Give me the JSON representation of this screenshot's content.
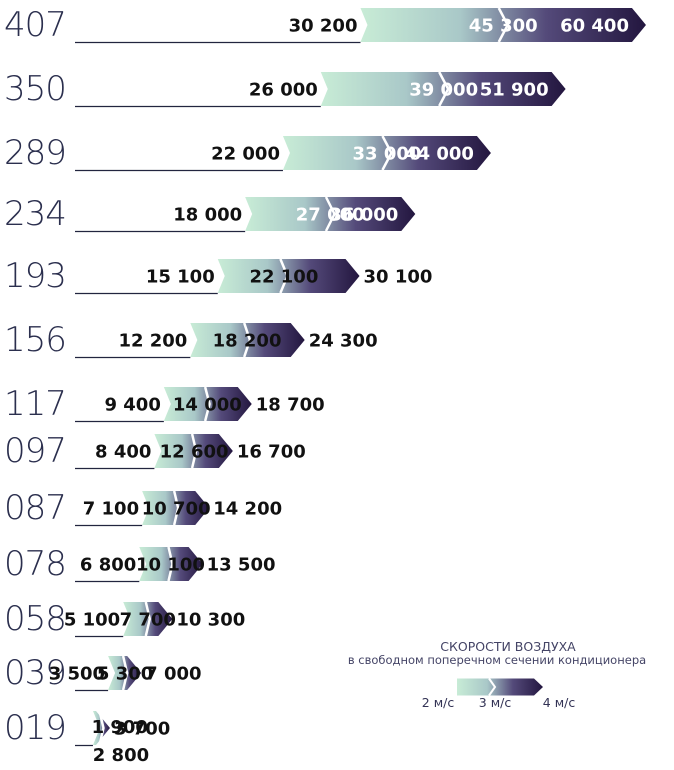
{
  "chart_data": {
    "type": "bar",
    "categories": [
      "407",
      "350",
      "289",
      "234",
      "193",
      "156",
      "117",
      "097",
      "087",
      "078",
      "058",
      "039",
      "019"
    ],
    "series": [
      {
        "name": "2 м/с",
        "values": [
          30200,
          26000,
          22000,
          18000,
          15100,
          12200,
          9400,
          8400,
          7100,
          6800,
          5100,
          3500,
          1900
        ]
      },
      {
        "name": "3 м/с",
        "values": [
          45300,
          39000,
          33000,
          27000,
          22100,
          18200,
          14000,
          12600,
          10700,
          10100,
          7700,
          5300,
          2800
        ]
      },
      {
        "name": "4 м/с",
        "values": [
          60400,
          51900,
          44000,
          36000,
          30100,
          24300,
          18700,
          16700,
          14200,
          13500,
          10300,
          7000,
          3700
        ]
      }
    ],
    "labels": [
      [
        "30 200",
        "45 300",
        "60 400"
      ],
      [
        "26 000",
        "39 000",
        "51 900"
      ],
      [
        "22 000",
        "33 000",
        "44 000"
      ],
      [
        "18 000",
        "27 000",
        "36 000"
      ],
      [
        "15 100",
        "22 100",
        "30 100"
      ],
      [
        "12 200",
        "18 200",
        "24 300"
      ],
      [
        "9 400",
        "14 000",
        "18 700"
      ],
      [
        "8 400",
        "12 600",
        "16 700"
      ],
      [
        "7 100",
        "10 700",
        "14 200"
      ],
      [
        "6 800",
        "10 100",
        "13 500"
      ],
      [
        "5 100",
        "7 700",
        "10 300"
      ],
      [
        "3 500",
        "5 300",
        "7 000"
      ],
      [
        "1 900",
        "2 800",
        "3 700"
      ]
    ],
    "legend": {
      "title": "СКОРОСТИ ВОЗДУХА",
      "subtitle": "в свободном поперечном сечении кондиционера",
      "items": [
        "2 м/с",
        "3 м/с",
        "4 м/с"
      ],
      "placement": "bottom-right"
    },
    "colors": {
      "start": "#c8ecd6",
      "end": "#23163f",
      "axis_line": "#22253f",
      "size_label": "#2b2f4e"
    },
    "title": "",
    "xlabel": "",
    "ylabel": ""
  }
}
